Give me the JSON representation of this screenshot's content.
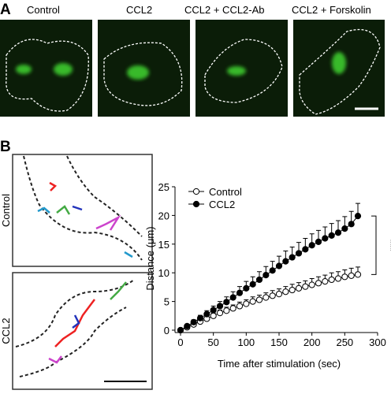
{
  "figure": {
    "panel_a": {
      "label": "A",
      "images": [
        "Control",
        "CCL2",
        "CCL2 + CCL2-Ab",
        "CCL2 + Forskolin"
      ]
    },
    "panel_b": {
      "label": "B",
      "tracks": [
        "Control",
        "CCL2"
      ]
    }
  },
  "chart_data": {
    "type": "line",
    "x_label": "Time after stimulation (sec)",
    "y_label": "Distance (μm)",
    "x": [
      0,
      10,
      20,
      30,
      40,
      50,
      60,
      70,
      80,
      90,
      100,
      110,
      120,
      130,
      140,
      150,
      160,
      170,
      180,
      190,
      200,
      210,
      220,
      230,
      240,
      250,
      260,
      270
    ],
    "series": [
      {
        "name": "Control",
        "color": "#000000",
        "marker_fill": "#ffffff",
        "values": [
          0,
          0.5,
          1,
          1.5,
          2,
          2.5,
          3,
          3.4,
          3.8,
          4.2,
          4.6,
          5,
          5.3,
          5.7,
          6,
          6.3,
          6.7,
          7,
          7.3,
          7.6,
          7.9,
          8.2,
          8.5,
          8.8,
          9,
          9.3,
          9.5,
          9.7
        ],
        "errors": [
          0,
          0.2,
          0.3,
          0.4,
          0.4,
          0.5,
          0.5,
          0.6,
          0.6,
          0.7,
          0.7,
          0.8,
          0.8,
          0.8,
          0.9,
          0.9,
          0.9,
          1,
          1,
          1,
          1.1,
          1.1,
          1.1,
          1.2,
          1.2,
          1.2,
          1.3,
          1.3
        ]
      },
      {
        "name": "CCL2",
        "color": "#000000",
        "marker_fill": "#000000",
        "values": [
          0,
          0.7,
          1.4,
          2.1,
          2.8,
          3.5,
          4.2,
          4.9,
          5.7,
          6.5,
          7.3,
          8,
          8.8,
          9.6,
          10.4,
          11.2,
          12,
          12.7,
          13.4,
          14.1,
          14.8,
          15.4,
          16,
          16.5,
          17,
          17.7,
          18.5,
          19.9
        ],
        "errors": [
          0,
          0.3,
          0.4,
          0.5,
          0.6,
          0.7,
          0.8,
          0.9,
          1,
          1.1,
          1.2,
          1.3,
          1.4,
          1.5,
          1.6,
          1.7,
          1.8,
          1.8,
          1.9,
          1.9,
          2,
          2,
          2,
          2.1,
          2.1,
          2.1,
          2.2,
          2.2
        ]
      }
    ],
    "xlim": [
      0,
      300
    ],
    "xticks": [
      0,
      50,
      100,
      150,
      200,
      250,
      300
    ],
    "ylim": [
      0,
      25
    ],
    "yticks": [
      0,
      5,
      10,
      15,
      20,
      25
    ],
    "legend": "upper left",
    "significance": "***"
  }
}
